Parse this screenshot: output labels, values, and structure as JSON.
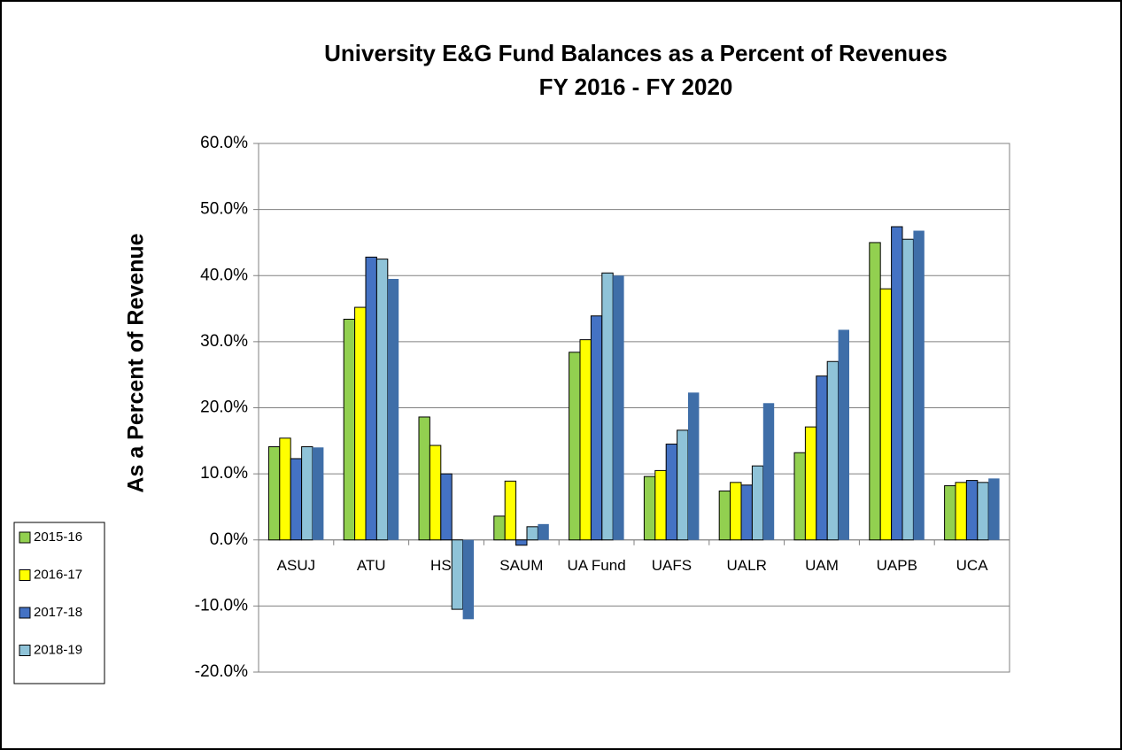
{
  "chart_data": {
    "type": "bar",
    "title": "University E&G Fund Balances as a Percent of Revenues",
    "subtitle": "FY 2016 - FY 2020",
    "y_label": "As a Percent of Revenue",
    "categories": [
      "ASUJ",
      "ATU",
      "HSU",
      "SAUM",
      "UA Fund",
      "UAFS",
      "UALR",
      "UAM",
      "UAPB",
      "UCA"
    ],
    "series": [
      {
        "name": "2015-16",
        "color": "#92d050",
        "values": [
          14.1,
          33.4,
          18.6,
          3.6,
          28.4,
          9.6,
          7.4,
          13.2,
          45.0,
          8.2
        ]
      },
      {
        "name": "2016-17",
        "color": "#ffff00",
        "values": [
          15.4,
          35.2,
          14.3,
          8.9,
          30.3,
          10.5,
          8.7,
          17.1,
          38.0,
          8.7
        ]
      },
      {
        "name": "2017-18",
        "color": "#4472c4",
        "values": [
          12.3,
          42.8,
          10.0,
          -0.8,
          33.9,
          14.5,
          8.3,
          24.8,
          47.4,
          9.0
        ]
      },
      {
        "name": "2018-19",
        "color": "#8fc3d8",
        "values": [
          14.1,
          42.5,
          -10.5,
          2.0,
          40.4,
          16.6,
          11.2,
          27.0,
          45.5,
          8.7
        ]
      },
      {
        "color": "#3f6ea8",
        "values": [
          14.0,
          39.5,
          -12.0,
          2.4,
          40.0,
          22.3,
          20.7,
          31.8,
          46.8,
          9.3
        ]
      }
    ],
    "ylim": [
      -20,
      60
    ],
    "yticks": [
      {
        "value": -20,
        "label": "-20.0%"
      },
      {
        "value": -10,
        "label": "-10.0%"
      },
      {
        "value": 0,
        "label": "0.0%"
      },
      {
        "value": 10,
        "label": "10.0%"
      },
      {
        "value": 20,
        "label": "20.0%"
      },
      {
        "value": 30,
        "label": "30.0%"
      },
      {
        "value": 40,
        "label": "40.0%"
      },
      {
        "value": 50,
        "label": "50.0%"
      },
      {
        "value": 60,
        "label": "60.0%"
      }
    ],
    "grid": true,
    "legend": "left"
  }
}
